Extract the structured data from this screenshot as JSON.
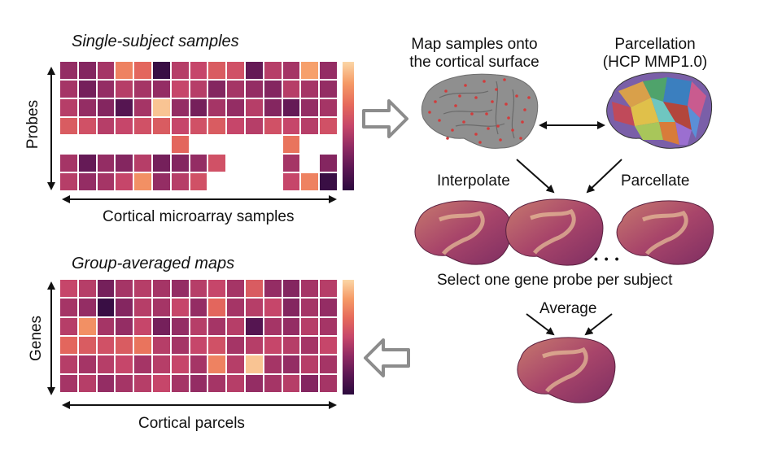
{
  "panel_top": {
    "title": "Single-subject samples",
    "y_axis_label": "Probes",
    "x_axis_label": "Cortical microarray samples"
  },
  "panel_bottom": {
    "title": "Group-averaged maps",
    "y_axis_label": "Genes",
    "x_axis_label": "Cortical parcels"
  },
  "pipeline": {
    "map_samples_line1": "Map samples onto",
    "map_samples_line2": "the cortical surface",
    "parcellation_line1": "Parcellation",
    "parcellation_line2": "(HCP MMP1.0)",
    "interpolate": "Interpolate",
    "parcellate": "Parcellate",
    "ellipsis": "• • •",
    "select_probe": "Select one gene probe per subject",
    "average": "Average"
  },
  "heatmap_top": {
    "rows": 7,
    "cols": 15,
    "missing": [
      [
        4,
        0
      ],
      [
        4,
        1
      ],
      [
        4,
        2
      ],
      [
        4,
        3
      ],
      [
        4,
        4
      ],
      [
        4,
        5
      ],
      [
        4,
        7
      ],
      [
        4,
        8
      ],
      [
        4,
        9
      ],
      [
        4,
        10
      ],
      [
        4,
        11
      ],
      [
        4,
        13
      ],
      [
        4,
        14
      ],
      [
        5,
        9
      ],
      [
        5,
        10
      ],
      [
        5,
        11
      ],
      [
        5,
        13
      ],
      [
        6,
        8
      ],
      [
        6,
        9
      ],
      [
        6,
        10
      ],
      [
        6,
        11
      ]
    ],
    "values": [
      [
        0.35,
        0.3,
        0.4,
        0.75,
        0.65,
        0.05,
        0.45,
        0.5,
        0.6,
        0.55,
        0.2,
        0.45,
        0.4,
        0.85,
        0.35
      ],
      [
        0.4,
        0.25,
        0.35,
        0.45,
        0.4,
        0.35,
        0.5,
        0.45,
        0.3,
        0.4,
        0.35,
        0.3,
        0.45,
        0.4,
        0.35
      ],
      [
        0.45,
        0.35,
        0.3,
        0.15,
        0.4,
        0.95,
        0.35,
        0.25,
        0.4,
        0.35,
        0.45,
        0.3,
        0.2,
        0.35,
        0.4
      ],
      [
        0.6,
        0.55,
        0.45,
        0.5,
        0.55,
        0.6,
        0.5,
        0.55,
        0.6,
        0.5,
        0.45,
        0.55,
        0.5,
        0.45,
        0.55
      ],
      [
        0,
        0,
        0,
        0,
        0,
        0,
        0.65,
        0,
        0,
        0,
        0,
        0,
        0.7,
        0,
        0
      ],
      [
        0.4,
        0.2,
        0.35,
        0.3,
        0.45,
        0.25,
        0.3,
        0.35,
        0.55,
        0,
        0,
        0,
        0.4,
        0,
        0.3
      ],
      [
        0.45,
        0.35,
        0.4,
        0.5,
        0.8,
        0.35,
        0.45,
        0.55,
        0,
        0,
        0,
        0,
        0.5,
        0.75,
        0.05
      ]
    ]
  },
  "heatmap_bottom": {
    "rows": 6,
    "cols": 15,
    "values": [
      [
        0.5,
        0.45,
        0.25,
        0.4,
        0.45,
        0.4,
        0.35,
        0.45,
        0.5,
        0.4,
        0.6,
        0.35,
        0.3,
        0.4,
        0.45
      ],
      [
        0.4,
        0.35,
        0.05,
        0.3,
        0.45,
        0.4,
        0.5,
        0.35,
        0.65,
        0.4,
        0.45,
        0.5,
        0.3,
        0.4,
        0.35
      ],
      [
        0.45,
        0.8,
        0.4,
        0.35,
        0.5,
        0.25,
        0.35,
        0.45,
        0.4,
        0.45,
        0.15,
        0.4,
        0.35,
        0.45,
        0.4
      ],
      [
        0.65,
        0.6,
        0.55,
        0.6,
        0.7,
        0.45,
        0.4,
        0.5,
        0.55,
        0.4,
        0.45,
        0.5,
        0.45,
        0.4,
        0.5
      ],
      [
        0.45,
        0.4,
        0.45,
        0.5,
        0.4,
        0.45,
        0.5,
        0.4,
        0.75,
        0.45,
        0.95,
        0.4,
        0.35,
        0.45,
        0.4
      ],
      [
        0.4,
        0.45,
        0.35,
        0.4,
        0.45,
        0.5,
        0.4,
        0.35,
        0.4,
        0.45,
        0.35,
        0.4,
        0.45,
        0.3,
        0.4
      ]
    ]
  },
  "colorscale": [
    "#2b0a3d",
    "#5a1653",
    "#8f2a63",
    "#c6466a",
    "#e66a5b",
    "#f59a66",
    "#fbd6a6"
  ]
}
